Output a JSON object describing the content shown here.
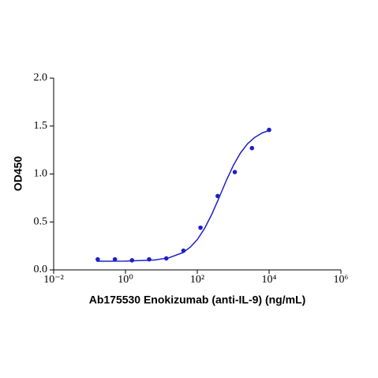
{
  "chart_data": {
    "type": "scatter",
    "x_label": "Ab175530 Enokizumab (anti-IL-9) (ng/mL)",
    "y_label": "OD450",
    "xscale": "log",
    "xlim": [
      0.01,
      1000000
    ],
    "xticks": [
      {
        "value": 0.01,
        "label": "10⁻²"
      },
      {
        "value": 1,
        "label": "10⁰"
      },
      {
        "value": 100,
        "label": "10²"
      },
      {
        "value": 10000,
        "label": "10⁴"
      },
      {
        "value": 1000000,
        "label": "10⁶"
      }
    ],
    "ylim": [
      0,
      2
    ],
    "yticks": [
      {
        "value": 0,
        "label": "0.0"
      },
      {
        "value": 0.5,
        "label": "0.5"
      },
      {
        "value": 1,
        "label": "1.0"
      },
      {
        "value": 1.5,
        "label": "1.5"
      },
      {
        "value": 2,
        "label": "2.0"
      }
    ],
    "series": [
      {
        "style": "markers",
        "color": "#1f1fc8",
        "x": [
          0.169,
          0.508,
          1.52,
          4.57,
          13.7,
          41.2,
          123,
          370,
          1111,
          3333,
          10000
        ],
        "values": [
          0.11,
          0.11,
          0.1,
          0.11,
          0.12,
          0.2,
          0.44,
          0.77,
          1.02,
          1.27,
          1.46
        ]
      },
      {
        "style": "line",
        "color": "#1f1fc8",
        "x": [
          0.158,
          1,
          6.31,
          15.85,
          39.8,
          63.1,
          100,
          158.5,
          251,
          398,
          631,
          1000,
          1585,
          2512,
          3981,
          6310,
          10000
        ],
        "values": [
          0.09,
          0.092,
          0.103,
          0.125,
          0.18,
          0.236,
          0.316,
          0.43,
          0.576,
          0.747,
          0.925,
          1.086,
          1.218,
          1.315,
          1.382,
          1.427,
          1.455
        ]
      }
    ]
  }
}
